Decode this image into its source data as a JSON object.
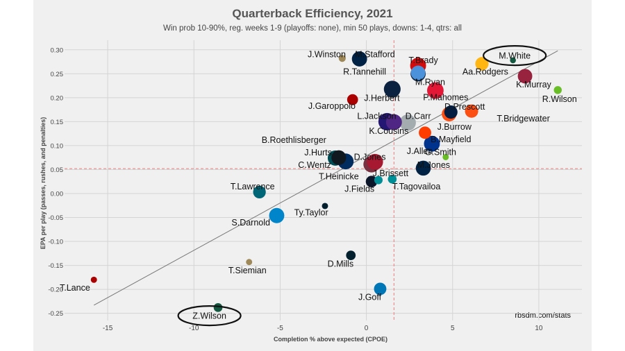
{
  "chart_data": {
    "type": "scatter",
    "title": "Quarterback Efficiency, 2021",
    "subtitle": "Win prob 10-90%, reg. weeks 1-9 (playoffs: none), min 50 plays, downs: 1-4, qtrs: all",
    "xlabel": "Completion % above expected (CPOE)",
    "ylabel": "EPA per play (passes, rushes, and penalties)",
    "xlim": [
      -17.5,
      12.5
    ],
    "ylim": [
      -0.265,
      0.32
    ],
    "x_ticks": [
      -15,
      -10,
      -5,
      0,
      5,
      10
    ],
    "y_ticks": [
      0.3,
      0.25,
      0.2,
      0.15,
      0.1,
      0.05,
      0.0,
      -0.05,
      -0.1,
      -0.15,
      -0.2,
      -0.25
    ],
    "grid": true,
    "mean_x": 1.6,
    "mean_y": 0.052,
    "trend_line": [
      [
        -15.8,
        -0.233
      ],
      [
        11.1,
        0.298
      ]
    ],
    "source": "rbsdm.com/stats",
    "points": [
      {
        "name": "J.Winston",
        "x": -1.4,
        "y": 0.282,
        "plays": 70,
        "color": "#9f8958"
      },
      {
        "name": "M.Stafford",
        "x": -0.4,
        "y": 0.281,
        "plays": 330,
        "color": "#002244"
      },
      {
        "name": "T.Brady",
        "x": 3.0,
        "y": 0.267,
        "plays": 360,
        "color": "#d50a0a"
      },
      {
        "name": "R.Tannehill",
        "x": 3.0,
        "y": 0.25,
        "plays": 330,
        "color": "#0c2340"
      },
      {
        "name": "M.Ryan",
        "x": 3.0,
        "y": 0.252,
        "plays": 300,
        "color": "#4b92db"
      },
      {
        "name": "Aa.Rodgers",
        "x": 6.7,
        "y": 0.271,
        "plays": 250,
        "color": "#ffb612"
      },
      {
        "name": "M.White",
        "x": 8.5,
        "y": 0.278,
        "plays": 50,
        "color": "#125740"
      },
      {
        "name": "K.Murray",
        "x": 9.2,
        "y": 0.245,
        "plays": 300,
        "color": "#97233f"
      },
      {
        "name": "R.Wilson",
        "x": 11.1,
        "y": 0.216,
        "plays": 90,
        "color": "#69be28"
      },
      {
        "name": "J.Herbert",
        "x": 1.5,
        "y": 0.218,
        "plays": 400,
        "color": "#0b2240"
      },
      {
        "name": "P.Mahomes",
        "x": 4.0,
        "y": 0.215,
        "plays": 390,
        "color": "#e31837"
      },
      {
        "name": "J.Garoppolo",
        "x": -0.8,
        "y": 0.196,
        "plays": 170,
        "color": "#aa0000"
      },
      {
        "name": "D.Prescott",
        "x": 4.9,
        "y": 0.17,
        "plays": 250,
        "color": "#041e42"
      },
      {
        "name": "J.Burrow",
        "x": 4.8,
        "y": 0.166,
        "plays": 310,
        "color": "#fb4f14"
      },
      {
        "name": "T.Bridgewater",
        "x": 6.1,
        "y": 0.172,
        "plays": 250,
        "color": "#fb4f14"
      },
      {
        "name": "L.Jackson",
        "x": 1.2,
        "y": 0.15,
        "plays": 430,
        "color": "#241773"
      },
      {
        "name": "K.Cousins",
        "x": 1.6,
        "y": 0.149,
        "plays": 360,
        "color": "#4f2683"
      },
      {
        "name": "D.Carr",
        "x": 2.4,
        "y": 0.148,
        "plays": 380,
        "color": "#a5acaf"
      },
      {
        "name": "B.Mayfield",
        "x": 3.4,
        "y": 0.127,
        "plays": 220,
        "color": "#ff3c00"
      },
      {
        "name": "J.Allen",
        "x": 3.8,
        "y": 0.104,
        "plays": 360,
        "color": "#00338d"
      },
      {
        "name": "G.Smith",
        "x": 4.6,
        "y": 0.076,
        "plays": 55,
        "color": "#69be28"
      },
      {
        "name": "B.Roethlisberger",
        "x": -1.6,
        "y": 0.075,
        "plays": 310,
        "color": "#101820"
      },
      {
        "name": "J.Hurts",
        "x": -1.8,
        "y": 0.074,
        "plays": 330,
        "color": "#004c54"
      },
      {
        "name": "C.Wentz",
        "x": -1.2,
        "y": 0.067,
        "plays": 360,
        "color": "#002c5f"
      },
      {
        "name": "D.Jones",
        "x": 0.5,
        "y": 0.066,
        "plays": 370,
        "color": "#a71930"
      },
      {
        "name": "T.Heinicke",
        "x": 0.3,
        "y": 0.061,
        "plays": 380,
        "color": "#773141"
      },
      {
        "name": "M.Jones",
        "x": 3.3,
        "y": 0.053,
        "plays": 320,
        "color": "#002244"
      },
      {
        "name": "J.Brissett",
        "x": 0.7,
        "y": 0.028,
        "plays": 100,
        "color": "#008e97"
      },
      {
        "name": "T.Tagovailoa",
        "x": 1.5,
        "y": 0.03,
        "plays": 110,
        "color": "#008e97"
      },
      {
        "name": "J.Fields",
        "x": 0.3,
        "y": 0.025,
        "plays": 190,
        "color": "#0b162a"
      },
      {
        "name": "T.Lawrence",
        "x": -6.2,
        "y": 0.003,
        "plays": 230,
        "color": "#006778"
      },
      {
        "name": "Ty.Taylor",
        "x": -2.4,
        "y": -0.026,
        "plays": 55,
        "color": "#03202f"
      },
      {
        "name": "S.Darnold",
        "x": -5.2,
        "y": -0.046,
        "plays": 330,
        "color": "#0085ca"
      },
      {
        "name": "T.Siemian",
        "x": -6.8,
        "y": -0.143,
        "plays": 55,
        "color": "#9f8958"
      },
      {
        "name": "D.Mills",
        "x": -0.9,
        "y": -0.129,
        "plays": 130,
        "color": "#03202f"
      },
      {
        "name": "J.Goff",
        "x": 0.8,
        "y": -0.199,
        "plays": 220,
        "color": "#0076b6"
      },
      {
        "name": "T.Lance",
        "x": -15.8,
        "y": -0.18,
        "plays": 55,
        "color": "#aa0000"
      },
      {
        "name": "Z.Wilson",
        "x": -8.6,
        "y": -0.238,
        "plays": 110,
        "color": "#125740"
      }
    ],
    "labels": [
      {
        "name": "J.Winston",
        "x": -2.3,
        "y": 0.291
      },
      {
        "name": "M.Stafford",
        "x": 0.5,
        "y": 0.291
      },
      {
        "name": "T.Brady",
        "x": 3.3,
        "y": 0.279
      },
      {
        "name": "R.Tannehill",
        "x": -0.1,
        "y": 0.255
      },
      {
        "name": "M.Ryan",
        "x": 3.7,
        "y": 0.233
      },
      {
        "name": "Aa.Rodgers",
        "x": 6.9,
        "y": 0.255
      },
      {
        "name": "M.White",
        "x": 8.6,
        "y": 0.288
      },
      {
        "name": "K.Murray",
        "x": 9.7,
        "y": 0.228
      },
      {
        "name": "R.Wilson",
        "x": 11.2,
        "y": 0.198
      },
      {
        "name": "J.Herbert",
        "x": 0.9,
        "y": 0.2
      },
      {
        "name": "P.Mahomes",
        "x": 4.6,
        "y": 0.201
      },
      {
        "name": "J.Garoppolo",
        "x": -2.0,
        "y": 0.183
      },
      {
        "name": "D.Prescott",
        "x": 5.7,
        "y": 0.182
      },
      {
        "name": "J.Burrow",
        "x": 5.1,
        "y": 0.14
      },
      {
        "name": "T.Bridgewater",
        "x": 9.1,
        "y": 0.157
      },
      {
        "name": "L.Jackson",
        "x": 0.6,
        "y": 0.162
      },
      {
        "name": "K.Cousins",
        "x": 1.3,
        "y": 0.131
      },
      {
        "name": "D.Carr",
        "x": 3.0,
        "y": 0.162
      },
      {
        "name": "B.Mayfield",
        "x": 4.9,
        "y": 0.114
      },
      {
        "name": "J.Allen",
        "x": 3.1,
        "y": 0.089
      },
      {
        "name": "G.Smith",
        "x": 4.3,
        "y": 0.087
      },
      {
        "name": "B.Roethlisberger",
        "x": -4.2,
        "y": 0.112
      },
      {
        "name": "J.Hurts",
        "x": -2.8,
        "y": 0.086
      },
      {
        "name": "C.Wentz",
        "x": -3.0,
        "y": 0.06
      },
      {
        "name": "D.Jones",
        "x": 0.2,
        "y": 0.077
      },
      {
        "name": "T.Heinicke",
        "x": -1.6,
        "y": 0.036
      },
      {
        "name": "M.Jones",
        "x": 3.9,
        "y": 0.06
      },
      {
        "name": "J.Brissett",
        "x": 1.4,
        "y": 0.043
      },
      {
        "name": "T.Tagovailoa",
        "x": 2.9,
        "y": 0.015
      },
      {
        "name": "J.Fields",
        "x": -0.4,
        "y": 0.01
      },
      {
        "name": "T.Lawrence",
        "x": -6.6,
        "y": 0.015
      },
      {
        "name": "Ty.Taylor",
        "x": -3.2,
        "y": -0.039
      },
      {
        "name": "S.Darnold",
        "x": -6.7,
        "y": -0.06
      },
      {
        "name": "T.Siemian",
        "x": -6.9,
        "y": -0.16
      },
      {
        "name": "D.Mills",
        "x": -1.5,
        "y": -0.146
      },
      {
        "name": "J.Goff",
        "x": 0.2,
        "y": -0.216
      },
      {
        "name": "T.Lance",
        "x": -16.9,
        "y": -0.196
      },
      {
        "name": "Z.Wilson",
        "x": -9.1,
        "y": -0.255
      }
    ],
    "circled": [
      "M.White",
      "Z.Wilson"
    ]
  }
}
